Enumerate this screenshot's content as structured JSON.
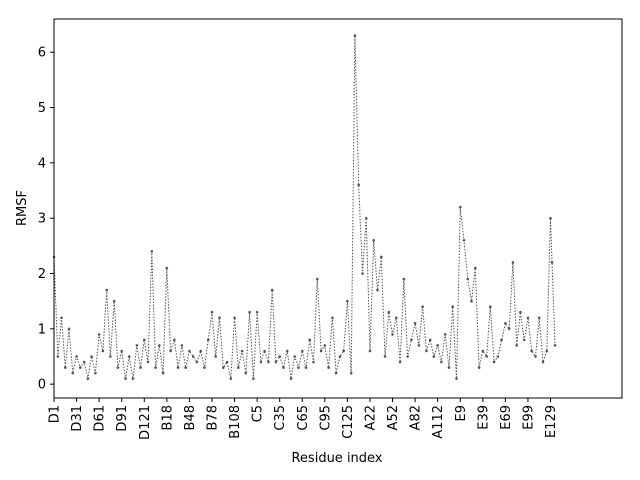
{
  "chart_data": {
    "type": "line",
    "title": "",
    "xlabel": "Residue index",
    "ylabel": "RMSF",
    "ylim": [
      -0.25,
      6.6
    ],
    "yticks": [
      0,
      1,
      2,
      3,
      4,
      5,
      6
    ],
    "xlim": [
      0,
      755
    ],
    "xticks": [
      {
        "pos": 0,
        "label": "D1"
      },
      {
        "pos": 30,
        "label": "D31"
      },
      {
        "pos": 60,
        "label": "D61"
      },
      {
        "pos": 90,
        "label": "D91"
      },
      {
        "pos": 120,
        "label": "D121"
      },
      {
        "pos": 150,
        "label": "B18"
      },
      {
        "pos": 180,
        "label": "B48"
      },
      {
        "pos": 210,
        "label": "B78"
      },
      {
        "pos": 240,
        "label": "B108"
      },
      {
        "pos": 270,
        "label": "C5"
      },
      {
        "pos": 300,
        "label": "C35"
      },
      {
        "pos": 330,
        "label": "C65"
      },
      {
        "pos": 360,
        "label": "C95"
      },
      {
        "pos": 390,
        "label": "C125"
      },
      {
        "pos": 420,
        "label": "A22"
      },
      {
        "pos": 450,
        "label": "A52"
      },
      {
        "pos": 480,
        "label": "A82"
      },
      {
        "pos": 510,
        "label": "A112"
      },
      {
        "pos": 540,
        "label": "E9"
      },
      {
        "pos": 570,
        "label": "E39"
      },
      {
        "pos": 600,
        "label": "E69"
      },
      {
        "pos": 630,
        "label": "E99"
      },
      {
        "pos": 660,
        "label": "E129"
      }
    ],
    "line_color": "#555555",
    "line_style": "dotted",
    "marker": "point",
    "series": [
      {
        "x": [
          0,
          5,
          10,
          15,
          20,
          25,
          30,
          35,
          40,
          45,
          50,
          55,
          60,
          65,
          70,
          75,
          80,
          85,
          90,
          95,
          100,
          105,
          110,
          115,
          120,
          125,
          130,
          135,
          140,
          145,
          150,
          155,
          160,
          165,
          170,
          175,
          180,
          185,
          190,
          195,
          200,
          205,
          210,
          215,
          220,
          225,
          230,
          235,
          240,
          245,
          250,
          255,
          260,
          265,
          270,
          275,
          280,
          285,
          290,
          295,
          300,
          305,
          310,
          315,
          320,
          325,
          330,
          335,
          340,
          345,
          350,
          355,
          360,
          365,
          370,
          375,
          380,
          385,
          390,
          395,
          400,
          405,
          410,
          415,
          420,
          425,
          430,
          435,
          440,
          445,
          450,
          455,
          460,
          465,
          470,
          475,
          480,
          485,
          490,
          495,
          500,
          505,
          510,
          515,
          520,
          525,
          530,
          535,
          540,
          545,
          550,
          555,
          560,
          565,
          570,
          575,
          580,
          585,
          590,
          595,
          600,
          605,
          610,
          615,
          620,
          625,
          630,
          635,
          640,
          645,
          650,
          655,
          660,
          662,
          666
        ],
        "y": [
          2.3,
          0.5,
          1.2,
          0.3,
          1.0,
          0.2,
          0.5,
          0.3,
          0.4,
          0.1,
          0.5,
          0.2,
          0.9,
          0.6,
          1.7,
          0.5,
          1.5,
          0.3,
          0.6,
          0.1,
          0.5,
          0.1,
          0.7,
          0.3,
          0.8,
          0.4,
          2.4,
          0.3,
          0.7,
          0.2,
          2.1,
          0.6,
          0.8,
          0.3,
          0.7,
          0.3,
          0.6,
          0.5,
          0.4,
          0.6,
          0.3,
          0.8,
          1.3,
          0.5,
          1.2,
          0.3,
          0.4,
          0.1,
          1.2,
          0.3,
          0.6,
          0.2,
          1.3,
          0.1,
          1.3,
          0.4,
          0.6,
          0.4,
          1.7,
          0.4,
          0.5,
          0.3,
          0.6,
          0.1,
          0.5,
          0.3,
          0.6,
          0.3,
          0.8,
          0.4,
          1.9,
          0.6,
          0.7,
          0.3,
          1.2,
          0.2,
          0.5,
          0.6,
          1.5,
          0.2,
          6.3,
          3.6,
          2.0,
          3.0,
          0.6,
          2.6,
          1.7,
          2.3,
          0.5,
          1.3,
          0.9,
          1.2,
          0.4,
          1.9,
          0.5,
          0.8,
          1.1,
          0.7,
          1.4,
          0.6,
          0.8,
          0.5,
          0.7,
          0.4,
          0.9,
          0.3,
          1.4,
          0.1,
          3.2,
          2.6,
          1.9,
          1.5,
          2.1,
          0.3,
          0.6,
          0.5,
          1.4,
          0.4,
          0.5,
          0.8,
          1.1,
          1.0,
          2.2,
          0.7,
          1.3,
          0.8,
          1.2,
          0.6,
          0.5,
          1.2,
          0.4,
          0.6,
          3.0,
          2.2,
          0.7
        ]
      }
    ]
  }
}
